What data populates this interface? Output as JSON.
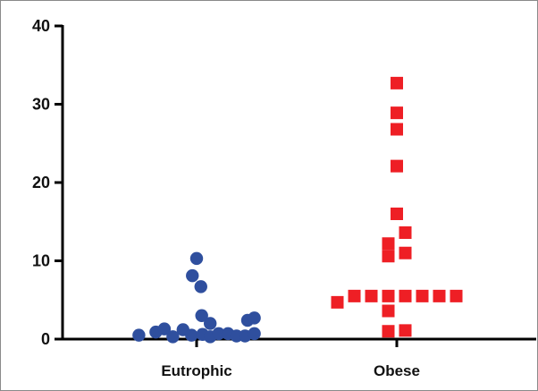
{
  "chart_data": {
    "type": "scatter",
    "title": "",
    "xlabel": "",
    "ylabel": "",
    "ylim": [
      0,
      40
    ],
    "yticks": [
      0,
      10,
      20,
      30,
      40
    ],
    "categories": [
      "Eutrophic",
      "Obese"
    ],
    "grid": false,
    "legend": "none",
    "series": [
      {
        "category": "Eutrophic",
        "marker": "circle",
        "color": "#2f4f9e",
        "points": [
          {
            "offset": -0.68,
            "y": 0.5
          },
          {
            "offset": -0.48,
            "y": 0.9
          },
          {
            "offset": -0.38,
            "y": 1.3
          },
          {
            "offset": -0.28,
            "y": 0.3
          },
          {
            "offset": -0.16,
            "y": 1.2
          },
          {
            "offset": -0.06,
            "y": 0.5
          },
          {
            "offset": -0.05,
            "y": 8.1
          },
          {
            "offset": 0.0,
            "y": 10.3
          },
          {
            "offset": 0.05,
            "y": 6.7
          },
          {
            "offset": 0.06,
            "y": 3.0
          },
          {
            "offset": 0.07,
            "y": 0.6
          },
          {
            "offset": 0.16,
            "y": 2.0
          },
          {
            "offset": 0.16,
            "y": 0.3
          },
          {
            "offset": 0.26,
            "y": 0.7
          },
          {
            "offset": 0.37,
            "y": 0.7
          },
          {
            "offset": 0.47,
            "y": 0.4
          },
          {
            "offset": 0.57,
            "y": 0.4
          },
          {
            "offset": 0.6,
            "y": 2.4
          },
          {
            "offset": 0.68,
            "y": 2.7
          },
          {
            "offset": 0.68,
            "y": 0.7
          }
        ]
      },
      {
        "category": "Obese",
        "marker": "square",
        "color": "#ee1f25",
        "points": [
          {
            "offset": 0.0,
            "y": 32.7
          },
          {
            "offset": 0.0,
            "y": 28.9
          },
          {
            "offset": 0.0,
            "y": 26.8
          },
          {
            "offset": 0.0,
            "y": 22.1
          },
          {
            "offset": 0.0,
            "y": 16.0
          },
          {
            "offset": 0.1,
            "y": 13.6
          },
          {
            "offset": -0.1,
            "y": 12.2
          },
          {
            "offset": 0.1,
            "y": 11.0
          },
          {
            "offset": -0.1,
            "y": 10.6
          },
          {
            "offset": -0.7,
            "y": 4.7
          },
          {
            "offset": -0.5,
            "y": 5.5
          },
          {
            "offset": -0.3,
            "y": 5.5
          },
          {
            "offset": -0.1,
            "y": 5.5
          },
          {
            "offset": 0.1,
            "y": 5.5
          },
          {
            "offset": 0.3,
            "y": 5.5
          },
          {
            "offset": 0.5,
            "y": 5.5
          },
          {
            "offset": 0.7,
            "y": 5.5
          },
          {
            "offset": -0.1,
            "y": 3.6
          },
          {
            "offset": -0.1,
            "y": 1.0
          },
          {
            "offset": 0.1,
            "y": 1.1
          }
        ]
      }
    ]
  }
}
